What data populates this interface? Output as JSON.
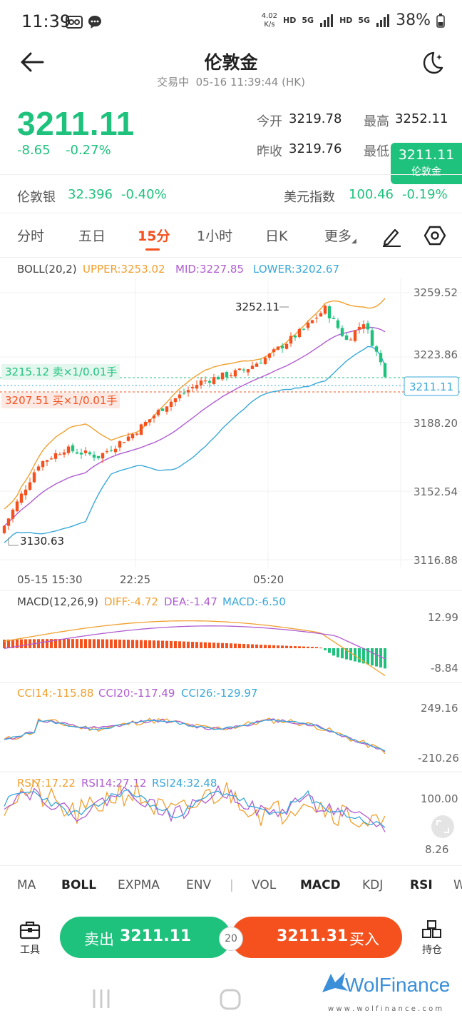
{
  "status": {
    "time": "11:39",
    "speed": "4.02",
    "speed_unit": "K/s",
    "hd1": "HD",
    "net1": "5G",
    "hd2": "HD",
    "net2": "5G",
    "battery": "38%",
    "icons": [
      "voicemail-icon",
      "chat-bubble-icon",
      "signal-icon",
      "battery-icon"
    ]
  },
  "header": {
    "title": "伦敦金",
    "status_text": "交易中",
    "datetime": "05-16 11:39:44 (HK)"
  },
  "quote": {
    "price": "3211.11",
    "change": "-8.65",
    "change_pct": "-0.27%",
    "open_label": "今开",
    "open": "3219.78",
    "high_label": "最高",
    "high": "3252.11",
    "prev_label": "昨收",
    "prev": "3219.76",
    "low_label": "最低",
    "float_price": "3211.11",
    "float_name": "伦敦金"
  },
  "related": {
    "silver_label": "伦敦银",
    "silver_price": "32.396",
    "silver_pct": "-0.40%",
    "dxy_label": "美元指数",
    "dxy_price": "100.46",
    "dxy_pct": "-0.19%"
  },
  "tabs": [
    "分时",
    "五日",
    "15分",
    "1小时",
    "日K",
    "更多"
  ],
  "active_tab": "15分",
  "boll": {
    "name": "BOLL(20,2)",
    "upper": "UPPER:3253.02",
    "mid": "MID:3227.85",
    "lower": "LOWER:3202.67"
  },
  "main_axis": [
    "3259.52",
    "3223.86",
    "3188.20",
    "3152.54",
    "3116.88"
  ],
  "time_axis": [
    "05-15 15:30",
    "22:25",
    "05:20"
  ],
  "annotations": {
    "high": "3252.11",
    "low": "3130.63",
    "sell_order": "3215.12 卖×1/0.01手",
    "buy_order": "3207.51 买×1/0.01手",
    "current": "3211.11"
  },
  "macd": {
    "name": "MACD(12,26,9)",
    "diff": "DIFF:-4.72",
    "dea": "DEA:-1.47",
    "macd": "MACD:-6.50",
    "axis": [
      "12.99",
      "-8.84"
    ]
  },
  "cci": {
    "cci14": "CCI14:-115.88",
    "cci20": "CCI20:-117.49",
    "cci26": "CCI26:-129.97",
    "axis": [
      "249.16",
      "-210.26"
    ]
  },
  "rsi": {
    "rsi7": "RSI7:17.22",
    "rsi14": "RSI14:27.12",
    "rsi24": "RSI24:32.48",
    "axis": [
      "100.00",
      "8.26"
    ]
  },
  "indicator_tabs": [
    "MA",
    "BOLL",
    "EXPMA",
    "ENV",
    "VOL",
    "MACD",
    "KDJ",
    "RSI",
    "W"
  ],
  "indicator_bold": [
    "BOLL",
    "MACD",
    "RSI"
  ],
  "bottom": {
    "tools_label": "工具",
    "sell_label": "卖出",
    "sell_price": "3211.11",
    "spread": "20",
    "buy_price": "3211.31",
    "buy_label": "买入",
    "position_label": "持仓"
  },
  "watermark": {
    "brand": "WolFinance",
    "url": "w w w . w o l f i n a n c e . c o m"
  },
  "colors": {
    "green": "#1ec27d",
    "red": "#f4511e",
    "upper": "#f0a030",
    "mid": "#b05cd0",
    "lower": "#3aa8d8"
  }
}
